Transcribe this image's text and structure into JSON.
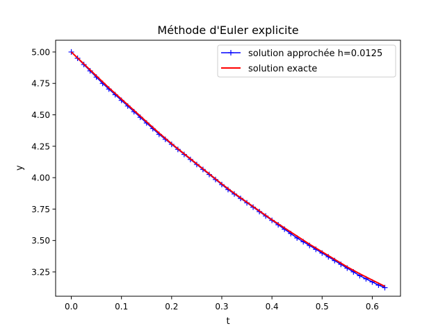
{
  "chart_data": {
    "type": "line",
    "title": "Méthode d'Euler explicite",
    "xlabel": "t",
    "ylabel": "y",
    "xlim": [
      -0.03125,
      0.65625
    ],
    "ylim": [
      3.0565,
      5.0935
    ],
    "grid": false,
    "legend_position": "upper right",
    "xticks": [
      0.0,
      0.1,
      0.2,
      0.3,
      0.4,
      0.5,
      0.6
    ],
    "xtick_labels": [
      "0.0",
      "0.1",
      "0.2",
      "0.3",
      "0.4",
      "0.5",
      "0.6"
    ],
    "yticks": [
      3.25,
      3.5,
      3.75,
      4.0,
      4.25,
      4.5,
      4.75,
      5.0
    ],
    "ytick_labels": [
      "3.25",
      "3.50",
      "3.75",
      "4.00",
      "4.25",
      "4.50",
      "4.75",
      "5.00"
    ],
    "series": [
      {
        "name": "solution approchée h=0.0125",
        "color": "#0000ff",
        "marker": "+",
        "x": [
          0,
          0.0125,
          0.025,
          0.0375,
          0.05,
          0.0625,
          0.075,
          0.0875,
          0.1,
          0.1125,
          0.125,
          0.1375,
          0.15,
          0.1625,
          0.175,
          0.1875,
          0.2,
          0.2125,
          0.225,
          0.2375,
          0.25,
          0.2625,
          0.275,
          0.2875,
          0.3,
          0.3125,
          0.325,
          0.3375,
          0.35,
          0.3625,
          0.375,
          0.3875,
          0.4,
          0.4125,
          0.425,
          0.4375,
          0.45,
          0.4625,
          0.475,
          0.4875,
          0.5,
          0.5125,
          0.525,
          0.5375,
          0.55,
          0.5625,
          0.575,
          0.5875,
          0.6,
          0.6125,
          0.625
        ],
        "y": [
          5.0,
          4.95,
          4.9,
          4.85,
          4.8,
          4.75,
          4.705,
          4.66,
          4.615,
          4.57,
          4.525,
          4.48,
          4.435,
          4.39,
          4.345,
          4.305,
          4.265,
          4.225,
          4.185,
          4.145,
          4.105,
          4.065,
          4.025,
          3.985,
          3.945,
          3.905,
          3.87,
          3.835,
          3.8,
          3.765,
          3.73,
          3.695,
          3.66,
          3.625,
          3.59,
          3.555,
          3.52,
          3.49,
          3.46,
          3.43,
          3.4,
          3.37,
          3.34,
          3.31,
          3.28,
          3.25,
          3.22,
          3.195,
          3.17,
          3.145,
          3.125
        ]
      },
      {
        "name": "solution exacte",
        "color": "#ff0000",
        "x": [
          0,
          0.025,
          0.05,
          0.075,
          0.1,
          0.125,
          0.15,
          0.175,
          0.2,
          0.225,
          0.25,
          0.275,
          0.3,
          0.325,
          0.35,
          0.375,
          0.4,
          0.425,
          0.45,
          0.475,
          0.5,
          0.525,
          0.55,
          0.575,
          0.6,
          0.625
        ],
        "y": [
          5.0,
          4.905,
          4.81,
          4.715,
          4.625,
          4.535,
          4.445,
          4.355,
          4.27,
          4.19,
          4.11,
          4.03,
          3.95,
          3.875,
          3.805,
          3.735,
          3.665,
          3.6,
          3.535,
          3.47,
          3.41,
          3.35,
          3.29,
          3.235,
          3.185,
          3.135
        ]
      }
    ]
  }
}
